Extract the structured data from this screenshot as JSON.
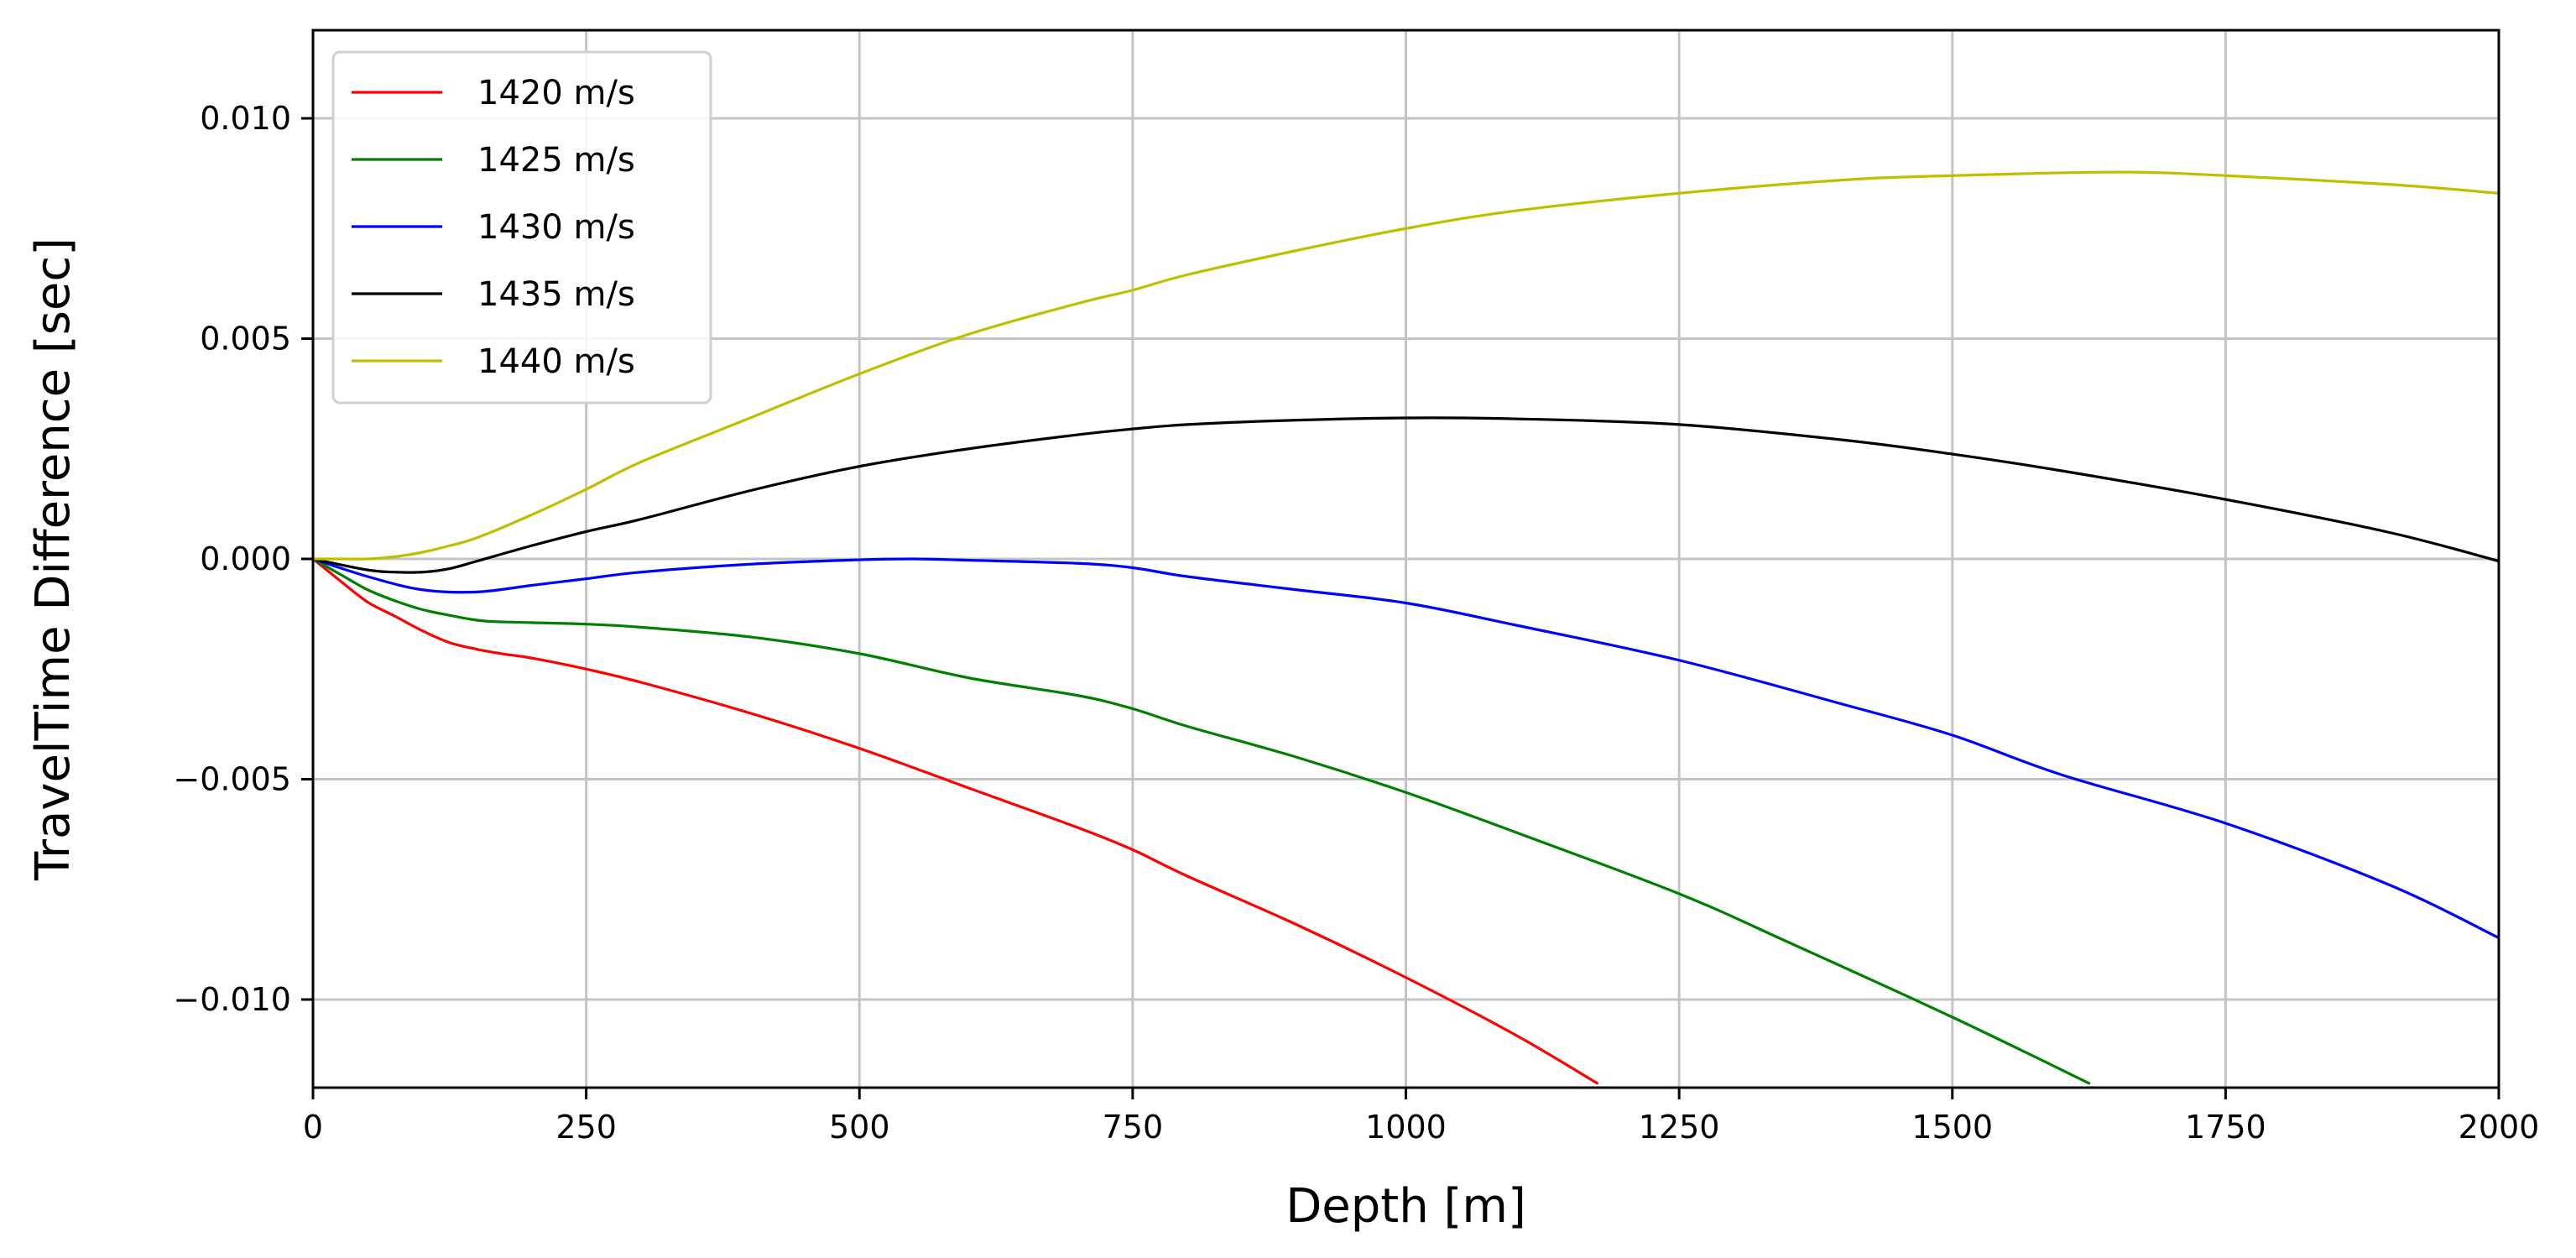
{
  "chart_data": {
    "type": "line",
    "title": "",
    "xlabel": "Depth [m]",
    "ylabel": "TravelTime Difference [sec]",
    "xlim": [
      0,
      2000
    ],
    "ylim": [
      -0.012,
      0.012
    ],
    "xticks": [
      0,
      250,
      500,
      750,
      1000,
      1250,
      1500,
      1750,
      2000
    ],
    "xtick_labels": [
      "0",
      "250",
      "500",
      "750",
      "1000",
      "1250",
      "1500",
      "1750",
      "2000"
    ],
    "yticks": [
      -0.01,
      -0.005,
      0.0,
      0.005,
      0.01
    ],
    "ytick_labels": [
      "−0.010",
      "−0.005",
      "0.000",
      "0.005",
      "0.010"
    ],
    "grid": true,
    "legend_position": "top-left",
    "series": [
      {
        "name": "1420 m/s",
        "color": "#ff0000",
        "x": [
          0,
          25,
          50,
          75,
          100,
          125,
          150,
          175,
          200,
          250,
          300,
          400,
          500,
          600,
          700,
          750,
          800,
          900,
          1000,
          1100,
          1175
        ],
        "y": [
          0,
          -0.0005,
          -0.00098,
          -0.0013,
          -0.00163,
          -0.0019,
          -0.00205,
          -0.00216,
          -0.00225,
          -0.0025,
          -0.0028,
          -0.0035,
          -0.0043,
          -0.0052,
          -0.0061,
          -0.0066,
          -0.0072,
          -0.0083,
          -0.0095,
          -0.0108,
          -0.0119
        ]
      },
      {
        "name": "1425 m/s",
        "color": "#008000",
        "x": [
          0,
          25,
          50,
          75,
          100,
          125,
          150,
          175,
          250,
          300,
          400,
          500,
          600,
          700,
          750,
          800,
          900,
          1000,
          1100,
          1250,
          1350,
          1500,
          1625
        ],
        "y": [
          0,
          -0.00035,
          -0.0007,
          -0.00095,
          -0.00115,
          -0.00128,
          -0.00139,
          -0.00143,
          -0.00148,
          -0.00155,
          -0.00177,
          -0.00215,
          -0.0027,
          -0.0031,
          -0.0034,
          -0.0038,
          -0.0045,
          -0.0053,
          -0.0062,
          -0.0076,
          -0.0087,
          -0.0104,
          -0.0119
        ]
      },
      {
        "name": "1430 m/s",
        "color": "#0000ff",
        "x": [
          0,
          50,
          100,
          150,
          200,
          250,
          300,
          400,
          500,
          550,
          600,
          700,
          750,
          800,
          900,
          1000,
          1100,
          1250,
          1400,
          1500,
          1600,
          1750,
          1900,
          2000
        ],
        "y": [
          0,
          -0.0004,
          -0.0007,
          -0.00075,
          -0.0006,
          -0.00045,
          -0.0003,
          -0.00012,
          -2e-05,
          0,
          -3e-05,
          -0.0001,
          -0.0002,
          -0.0004,
          -0.0007,
          -0.001,
          -0.0015,
          -0.0023,
          -0.0033,
          -0.004,
          -0.0049,
          -0.006,
          -0.0074,
          -0.0086
        ]
      },
      {
        "name": "1435 m/s",
        "color": "#000000",
        "x": [
          0,
          50,
          75,
          100,
          125,
          150,
          200,
          250,
          300,
          400,
          500,
          600,
          700,
          750,
          800,
          900,
          1000,
          1100,
          1250,
          1400,
          1500,
          1600,
          1750,
          1900,
          2000
        ],
        "y": [
          0,
          -0.00025,
          -0.0003,
          -0.0003,
          -0.00022,
          -5e-05,
          0.0003,
          0.00062,
          0.0009,
          0.00155,
          0.0021,
          0.0025,
          0.00282,
          0.00295,
          0.00305,
          0.00315,
          0.0032,
          0.00318,
          0.00305,
          0.0027,
          0.00238,
          0.002,
          0.00135,
          0.0006,
          -5e-05
        ]
      },
      {
        "name": "1440 m/s",
        "color": "#bfbf00",
        "x": [
          0,
          25,
          50,
          75,
          100,
          125,
          150,
          200,
          250,
          300,
          400,
          500,
          600,
          700,
          750,
          800,
          900,
          1000,
          1100,
          1250,
          1400,
          1500,
          1650,
          1750,
          1900,
          2000
        ],
        "y": [
          0,
          0,
          0,
          5e-05,
          0.00015,
          0.0003,
          0.00048,
          0.001,
          0.00158,
          0.0022,
          0.0032,
          0.0042,
          0.0051,
          0.0058,
          0.0061,
          0.00645,
          0.007,
          0.0075,
          0.0079,
          0.0083,
          0.0086,
          0.0087,
          0.00878,
          0.0087,
          0.0085,
          0.0083
        ]
      }
    ]
  }
}
